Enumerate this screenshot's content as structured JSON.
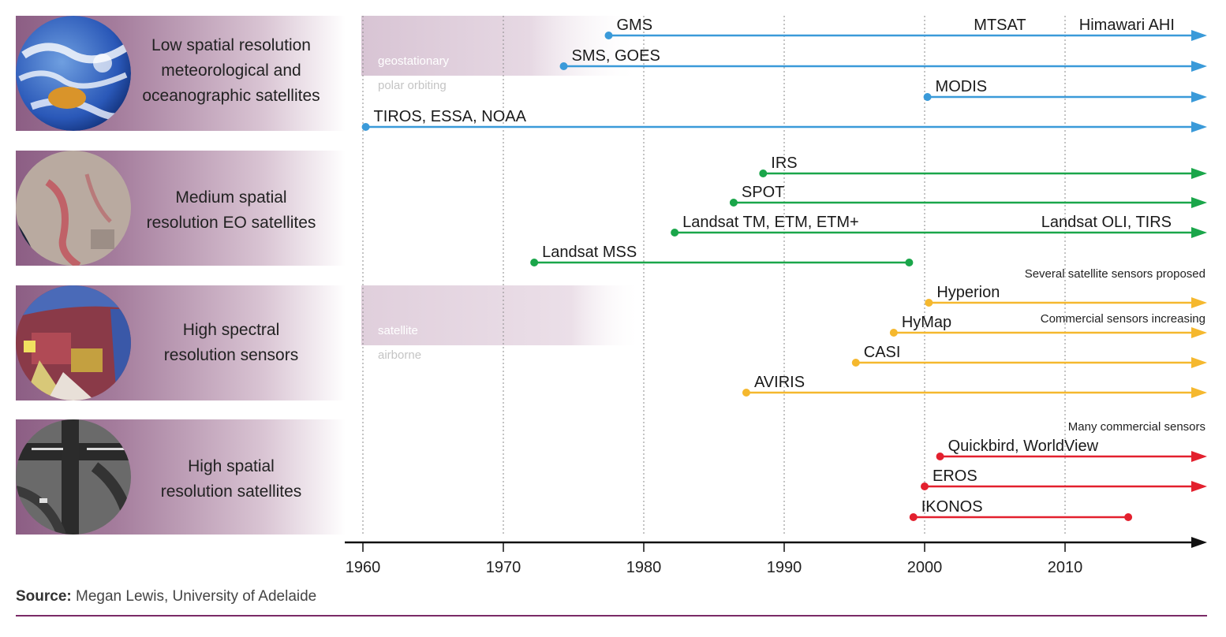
{
  "rows": [
    {
      "label_lines": [
        "Low spatial resolution",
        "meteorological and",
        "oceanographic satellites"
      ],
      "image": "earth-globe-image"
    },
    {
      "label_lines": [
        "Medium spatial",
        "resolution EO satellites"
      ],
      "image": "landsat-scene-image"
    },
    {
      "label_lines": [
        "High spectral",
        "resolution sensors"
      ],
      "image": "hyperspectral-city-image"
    },
    {
      "label_lines": [
        "High spatial",
        "resolution satellites"
      ],
      "image": "airport-runway-image"
    }
  ],
  "source": {
    "label": "Source:",
    "text": " Megan Lewis, University of Adelaide"
  },
  "colors": {
    "blue": "#3a9ad9",
    "green": "#1aa64a",
    "yellow": "#f5b82e",
    "red": "#e3202e",
    "band": "#8c5e84",
    "shade": "#e2d3df",
    "rule": "#7a2a66"
  },
  "chart_data": {
    "type": "timeline",
    "xlim": [
      1960,
      2020
    ],
    "x_ticks": [
      1960,
      1970,
      1980,
      1990,
      2000,
      2010
    ],
    "annotations": [
      {
        "text": "Several satellite sensors proposed",
        "group": "High spectral resolution sensors"
      },
      {
        "text": "Commercial sensors increasing",
        "group": "High spectral resolution sensors"
      },
      {
        "text": "Many commercial sensors",
        "group": "High spatial resolution satellites"
      }
    ],
    "shaded_notes": [
      {
        "top": "geostationary",
        "bottom": "polar orbiting",
        "group": "Low spatial resolution meteorological and oceanographic satellites"
      },
      {
        "top": "satellite",
        "bottom": "airborne",
        "group": "High spectral resolution sensors"
      }
    ],
    "series": [
      {
        "name": "GMS",
        "start": 1977.5,
        "end": null,
        "color": "blue",
        "slot": 0,
        "extra_labels": [
          {
            "text": "MTSAT",
            "x": 2003.5
          },
          {
            "text": "Himawari AHI",
            "x": 2011
          }
        ]
      },
      {
        "name": "SMS, GOES",
        "start": 1974.3,
        "end": null,
        "color": "blue",
        "slot": 1
      },
      {
        "name": "MODIS",
        "start": 2000.2,
        "end": null,
        "color": "blue",
        "slot": 2
      },
      {
        "name": "TIROS, ESSA, NOAA",
        "start": 1960.2,
        "end": null,
        "color": "blue",
        "slot": 3
      },
      {
        "name": "IRS",
        "start": 1988.5,
        "end": null,
        "color": "green",
        "slot": 4
      },
      {
        "name": "SPOT",
        "start": 1986.4,
        "end": null,
        "color": "green",
        "slot": 5
      },
      {
        "name": "Landsat TM, ETM, ETM+",
        "start": 1982.2,
        "end": null,
        "color": "green",
        "slot": 6,
        "extra_labels": [
          {
            "text": "Landsat OLI, TIRS",
            "x": 2008.3
          }
        ]
      },
      {
        "name": "Landsat MSS",
        "start": 1972.2,
        "end": 1998.9,
        "color": "green",
        "slot": 7
      },
      {
        "name": "Hyperion",
        "start": 2000.3,
        "end": null,
        "color": "yellow",
        "slot": 8
      },
      {
        "name": "HyMap",
        "start": 1997.8,
        "end": null,
        "color": "yellow",
        "slot": 9
      },
      {
        "name": "CASI",
        "start": 1995.1,
        "end": null,
        "color": "yellow",
        "slot": 10
      },
      {
        "name": "AVIRIS",
        "start": 1987.3,
        "end": null,
        "color": "yellow",
        "slot": 11
      },
      {
        "name": "Quickbird, WorldView",
        "start": 2001.1,
        "end": null,
        "color": "red",
        "slot": 12
      },
      {
        "name": "EROS",
        "start": 2000,
        "end": null,
        "color": "red",
        "slot": 13
      },
      {
        "name": "IKONOS",
        "start": 1999.2,
        "end": 2014.5,
        "color": "red",
        "slot": 14
      }
    ]
  }
}
